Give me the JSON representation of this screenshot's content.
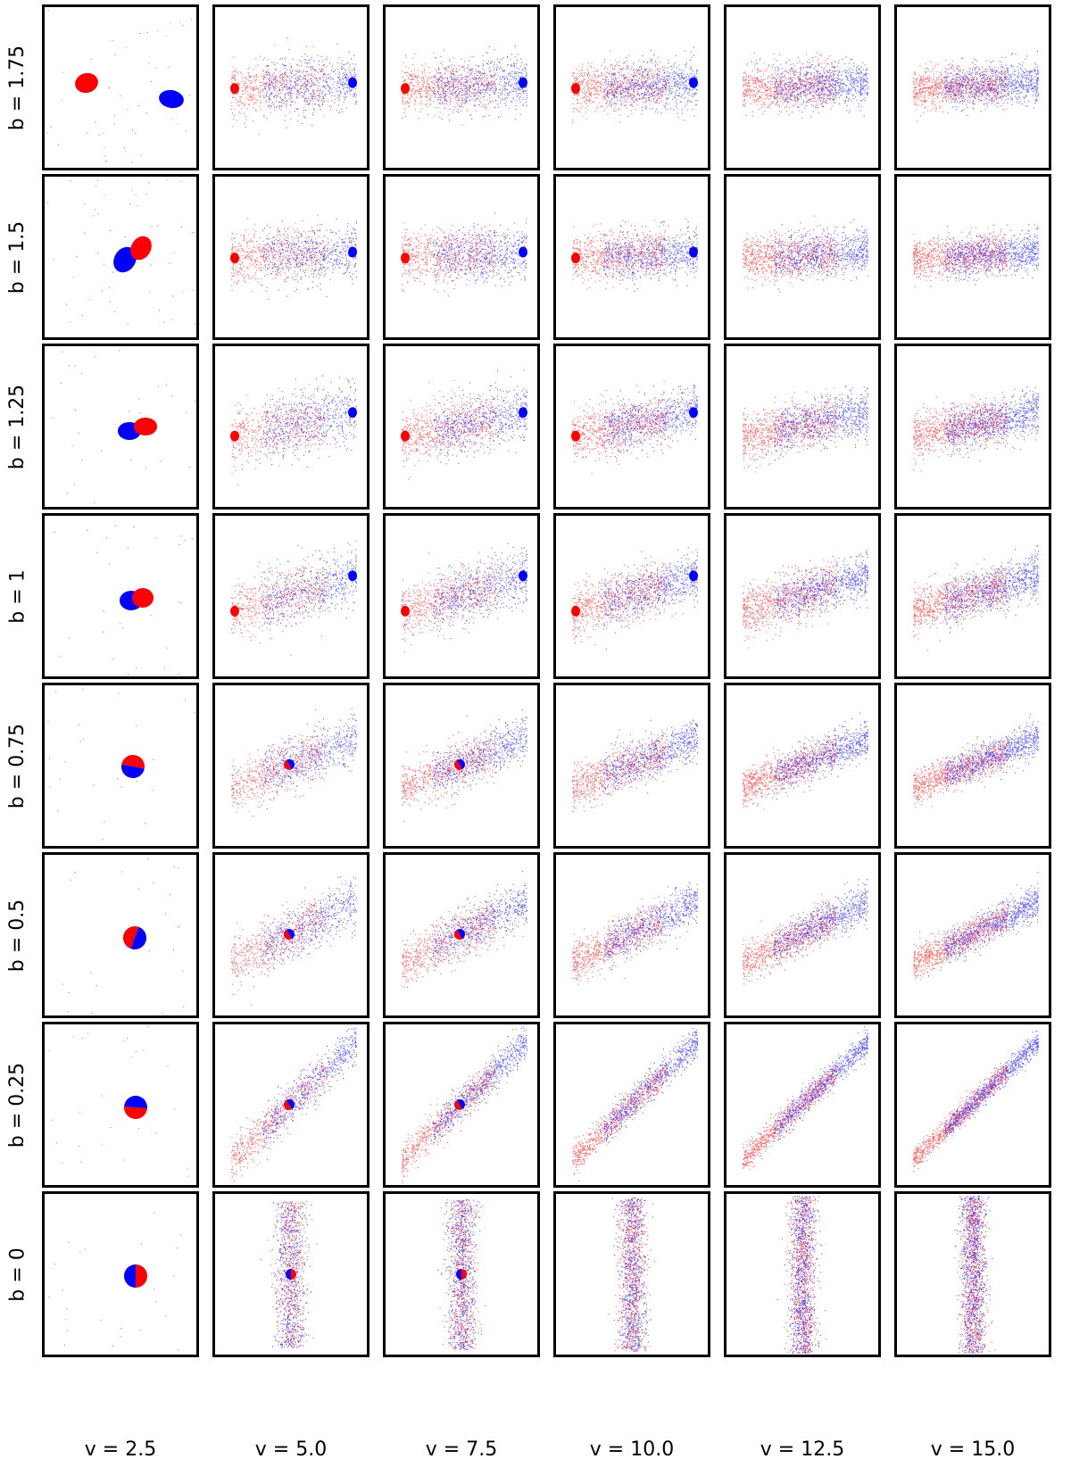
{
  "chart_data": {
    "type": "scatter",
    "layout": "grid of scatter panels (8 rows x 6 columns), no axes or ticks",
    "row_labels": [
      "b = 1.75",
      "b = 1.5",
      "b = 1.25",
      "b = 1",
      "b = 0.75",
      "b = 0.5",
      "b = 0.25",
      "b = 0"
    ],
    "col_labels": [
      "v = 2.5",
      "v = 5.0",
      "v = 7.5",
      "v = 10.0",
      "v = 12.5",
      "v = 15.0"
    ],
    "b_values": [
      1.75,
      1.5,
      1.25,
      1,
      0.75,
      0.5,
      0.25,
      0
    ],
    "v_values": [
      2.5,
      5.0,
      7.5,
      10.0,
      12.5,
      15.0
    ],
    "series": [
      {
        "color": "#ff0000"
      },
      {
        "color": "#0000ff"
      }
    ],
    "grid": false,
    "legend": "none"
  }
}
